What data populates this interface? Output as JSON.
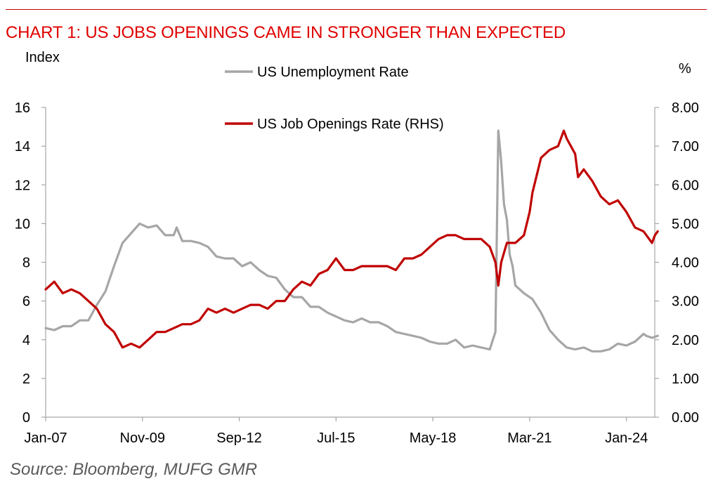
{
  "title": "CHART 1: US JOBS OPENINGS CAME IN STRONGER THAN EXPECTED",
  "source": "Source: Bloomberg, MUFG GMR",
  "colors": {
    "title": "#e00000",
    "unemployment": "#a6a6a6",
    "job_openings": "#c00000",
    "axis": "#a6a6a6"
  },
  "chart_data": {
    "type": "line",
    "ylabel": "Index",
    "y2label": "%",
    "ylim": [
      0,
      16
    ],
    "y2lim": [
      0,
      8
    ],
    "yticks": [
      "0",
      "2",
      "4",
      "6",
      "8",
      "10",
      "12",
      "14",
      "16"
    ],
    "y2ticks": [
      "0.00",
      "1.00",
      "2.00",
      "3.00",
      "4.00",
      "5.00",
      "6.00",
      "7.00",
      "8.00"
    ],
    "xticks": [
      "Jan-07",
      "Nov-09",
      "Sep-12",
      "Jul-15",
      "May-18",
      "Mar-21",
      "Jan-24"
    ],
    "xrange": [
      "Jan-07",
      "Jul-24"
    ],
    "legend_position": "top-center",
    "grid": false,
    "series": [
      {
        "name": "US Unemployment Rate",
        "axis": "left",
        "points": [
          [
            "Jan-07",
            4.6
          ],
          [
            "Apr-07",
            4.5
          ],
          [
            "Jul-07",
            4.7
          ],
          [
            "Oct-07",
            4.7
          ],
          [
            "Jan-08",
            5.0
          ],
          [
            "Apr-08",
            5.0
          ],
          [
            "Jul-08",
            5.8
          ],
          [
            "Oct-08",
            6.5
          ],
          [
            "Jan-09",
            7.8
          ],
          [
            "Apr-09",
            9.0
          ],
          [
            "Jul-09",
            9.5
          ],
          [
            "Oct-09",
            10.0
          ],
          [
            "Jan-10",
            9.8
          ],
          [
            "Apr-10",
            9.9
          ],
          [
            "Jul-10",
            9.4
          ],
          [
            "Oct-10",
            9.4
          ],
          [
            "Nov-10",
            9.8
          ],
          [
            "Jan-11",
            9.1
          ],
          [
            "Apr-11",
            9.1
          ],
          [
            "Jul-11",
            9.0
          ],
          [
            "Oct-11",
            8.8
          ],
          [
            "Jan-12",
            8.3
          ],
          [
            "Apr-12",
            8.2
          ],
          [
            "Jul-12",
            8.2
          ],
          [
            "Oct-12",
            7.8
          ],
          [
            "Jan-13",
            8.0
          ],
          [
            "Apr-13",
            7.6
          ],
          [
            "Jul-13",
            7.3
          ],
          [
            "Oct-13",
            7.2
          ],
          [
            "Jan-14",
            6.6
          ],
          [
            "Apr-14",
            6.2
          ],
          [
            "Jul-14",
            6.2
          ],
          [
            "Oct-14",
            5.7
          ],
          [
            "Jan-15",
            5.7
          ],
          [
            "Apr-15",
            5.4
          ],
          [
            "Jul-15",
            5.2
          ],
          [
            "Oct-15",
            5.0
          ],
          [
            "Jan-16",
            4.9
          ],
          [
            "Apr-16",
            5.1
          ],
          [
            "Jul-16",
            4.9
          ],
          [
            "Oct-16",
            4.9
          ],
          [
            "Jan-17",
            4.7
          ],
          [
            "Apr-17",
            4.4
          ],
          [
            "Jul-17",
            4.3
          ],
          [
            "Oct-17",
            4.2
          ],
          [
            "Jan-18",
            4.1
          ],
          [
            "Apr-18",
            3.9
          ],
          [
            "Jul-18",
            3.8
          ],
          [
            "Oct-18",
            3.8
          ],
          [
            "Jan-19",
            4.0
          ],
          [
            "Apr-19",
            3.6
          ],
          [
            "Jul-19",
            3.7
          ],
          [
            "Oct-19",
            3.6
          ],
          [
            "Jan-20",
            3.5
          ],
          [
            "Mar-20",
            4.4
          ],
          [
            "Apr-20",
            14.8
          ],
          [
            "May-20",
            13.2
          ],
          [
            "Jun-20",
            11.0
          ],
          [
            "Jul-20",
            10.2
          ],
          [
            "Aug-20",
            8.4
          ],
          [
            "Sep-20",
            7.8
          ],
          [
            "Oct-20",
            6.8
          ],
          [
            "Jan-21",
            6.4
          ],
          [
            "Apr-21",
            6.1
          ],
          [
            "Jul-21",
            5.4
          ],
          [
            "Oct-21",
            4.5
          ],
          [
            "Jan-22",
            4.0
          ],
          [
            "Apr-22",
            3.6
          ],
          [
            "Jul-22",
            3.5
          ],
          [
            "Oct-22",
            3.6
          ],
          [
            "Jan-23",
            3.4
          ],
          [
            "Apr-23",
            3.4
          ],
          [
            "Jul-23",
            3.5
          ],
          [
            "Oct-23",
            3.8
          ],
          [
            "Jan-24",
            3.7
          ],
          [
            "Apr-24",
            3.9
          ],
          [
            "Jul-24",
            4.3
          ],
          [
            "Aug-24",
            4.2
          ],
          [
            "Oct-24",
            4.1
          ],
          [
            "Dec-24",
            4.2
          ]
        ]
      },
      {
        "name": "US Job Openings Rate (RHS)",
        "axis": "right",
        "points": [
          [
            "Jan-07",
            3.3
          ],
          [
            "Apr-07",
            3.5
          ],
          [
            "Jul-07",
            3.2
          ],
          [
            "Oct-07",
            3.3
          ],
          [
            "Jan-08",
            3.2
          ],
          [
            "Apr-08",
            3.0
          ],
          [
            "Jul-08",
            2.8
          ],
          [
            "Oct-08",
            2.4
          ],
          [
            "Jan-09",
            2.2
          ],
          [
            "Apr-09",
            1.8
          ],
          [
            "Jul-09",
            1.9
          ],
          [
            "Oct-09",
            1.8
          ],
          [
            "Jan-10",
            2.0
          ],
          [
            "Apr-10",
            2.2
          ],
          [
            "Jul-10",
            2.2
          ],
          [
            "Oct-10",
            2.3
          ],
          [
            "Jan-11",
            2.4
          ],
          [
            "Apr-11",
            2.4
          ],
          [
            "Jul-11",
            2.5
          ],
          [
            "Oct-11",
            2.8
          ],
          [
            "Jan-12",
            2.7
          ],
          [
            "Apr-12",
            2.8
          ],
          [
            "Jul-12",
            2.7
          ],
          [
            "Oct-12",
            2.8
          ],
          [
            "Jan-13",
            2.9
          ],
          [
            "Apr-13",
            2.9
          ],
          [
            "Jul-13",
            2.8
          ],
          [
            "Oct-13",
            3.0
          ],
          [
            "Jan-14",
            3.0
          ],
          [
            "Apr-14",
            3.3
          ],
          [
            "Jul-14",
            3.5
          ],
          [
            "Oct-14",
            3.4
          ],
          [
            "Jan-15",
            3.7
          ],
          [
            "Apr-15",
            3.8
          ],
          [
            "Jul-15",
            4.1
          ],
          [
            "Oct-15",
            3.8
          ],
          [
            "Jan-16",
            3.8
          ],
          [
            "Apr-16",
            3.9
          ],
          [
            "Jul-16",
            3.9
          ],
          [
            "Oct-16",
            3.9
          ],
          [
            "Jan-17",
            3.9
          ],
          [
            "Apr-17",
            3.8
          ],
          [
            "Jul-17",
            4.1
          ],
          [
            "Oct-17",
            4.1
          ],
          [
            "Jan-18",
            4.2
          ],
          [
            "Apr-18",
            4.4
          ],
          [
            "Jul-18",
            4.6
          ],
          [
            "Oct-18",
            4.7
          ],
          [
            "Jan-19",
            4.7
          ],
          [
            "Apr-19",
            4.6
          ],
          [
            "Jul-19",
            4.6
          ],
          [
            "Oct-19",
            4.6
          ],
          [
            "Jan-20",
            4.4
          ],
          [
            "Mar-20",
            4.0
          ],
          [
            "Apr-20",
            3.4
          ],
          [
            "May-20",
            4.0
          ],
          [
            "Jul-20",
            4.5
          ],
          [
            "Oct-20",
            4.5
          ],
          [
            "Jan-21",
            4.7
          ],
          [
            "Mar-21",
            5.3
          ],
          [
            "Apr-21",
            5.8
          ],
          [
            "Jul-21",
            6.7
          ],
          [
            "Oct-21",
            6.9
          ],
          [
            "Jan-22",
            7.0
          ],
          [
            "Mar-22",
            7.4
          ],
          [
            "Apr-22",
            7.2
          ],
          [
            "Jul-22",
            6.8
          ],
          [
            "Aug-22",
            6.2
          ],
          [
            "Oct-22",
            6.4
          ],
          [
            "Jan-23",
            6.1
          ],
          [
            "Apr-23",
            5.7
          ],
          [
            "Jul-23",
            5.5
          ],
          [
            "Oct-23",
            5.6
          ],
          [
            "Jan-24",
            5.3
          ],
          [
            "Apr-24",
            4.9
          ],
          [
            "Jul-24",
            4.8
          ],
          [
            "Oct-24",
            4.5
          ],
          [
            "Nov-24",
            4.7
          ],
          [
            "Dec-24",
            4.8
          ]
        ]
      }
    ]
  }
}
